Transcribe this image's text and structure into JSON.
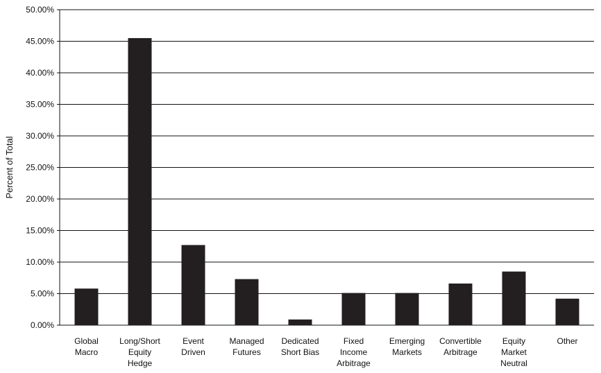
{
  "chart_data": {
    "type": "bar",
    "title": "",
    "xlabel": "",
    "ylabel": "Percent of Total",
    "ylim": [
      0,
      50
    ],
    "y_ticks": [
      "0.00%",
      "5.00%",
      "10.00%",
      "15.00%",
      "20.00%",
      "25.00%",
      "30.00%",
      "35.00%",
      "40.00%",
      "45.00%",
      "50.00%"
    ],
    "grid": true,
    "legend": "none",
    "bar_color": "#231f20",
    "categories": [
      [
        "Global",
        "Macro"
      ],
      [
        "Long/Short",
        "Equity",
        "Hedge"
      ],
      [
        "Event",
        "Driven"
      ],
      [
        "Managed",
        "Futures"
      ],
      [
        "Dedicated",
        "Short Bias"
      ],
      [
        "Fixed",
        "Income",
        "Arbitrage"
      ],
      [
        "Emerging",
        "Markets"
      ],
      [
        "Convertible",
        "Arbitrage"
      ],
      [
        "Equity",
        "Market",
        "Neutral"
      ],
      [
        "Other"
      ]
    ],
    "values": [
      5.8,
      45.5,
      12.7,
      7.3,
      0.9,
      5.1,
      5.1,
      6.6,
      8.5,
      4.2
    ]
  }
}
